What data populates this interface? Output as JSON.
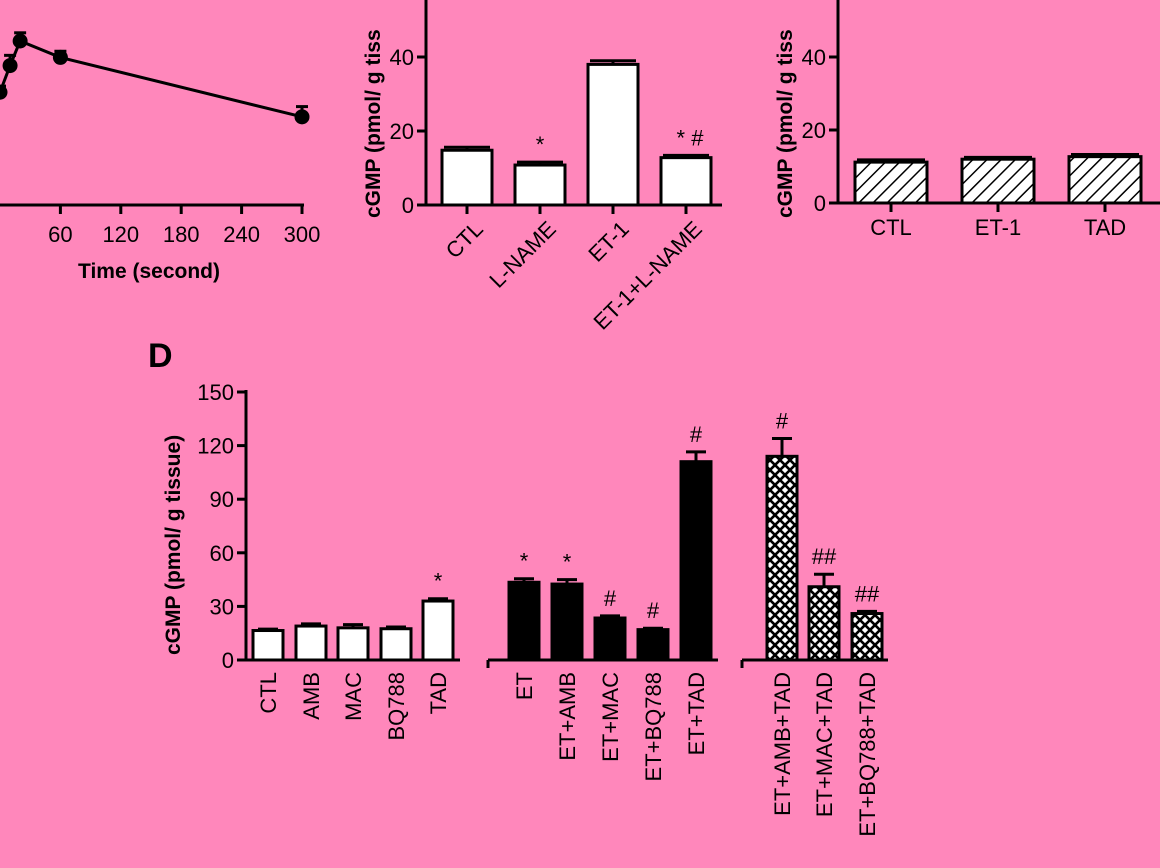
{
  "chart_data": [
    {
      "id": "A",
      "type": "line",
      "title": "",
      "xlabel": "Time (second)",
      "ylabel": "",
      "x_ticks": [
        "60",
        "120",
        "180",
        "240",
        "300"
      ],
      "xlim": [
        0,
        300
      ],
      "series": [
        {
          "x": [
            0,
            10,
            20,
            60,
            300
          ],
          "y": [
            0.55,
            0.68,
            0.8,
            0.72,
            0.43
          ],
          "err": [
            0.03,
            0.05,
            0.04,
            0.03,
            0.05
          ]
        }
      ],
      "note": "y-axis cropped; y values are relative estimates only"
    },
    {
      "id": "B",
      "type": "bar",
      "title": "",
      "ylabel": "cGMP (pmol/ g tiss",
      "y_ticks": [
        "0",
        "20",
        "40"
      ],
      "ylim": [
        0,
        60
      ],
      "categories": [
        "CTL",
        "L-NAME",
        "ET-1",
        "ET-1+L-NAME"
      ],
      "values": [
        14.8,
        10.8,
        38,
        12.8
      ],
      "errors": [
        0.8,
        0.8,
        1.0,
        0.6
      ],
      "annotations": [
        "",
        "*",
        "",
        "*#"
      ]
    },
    {
      "id": "C",
      "type": "bar",
      "title": "",
      "ylabel": "cGMP (pmol/ g tiss",
      "y_ticks": [
        "0",
        "20",
        "40"
      ],
      "ylim": [
        0,
        60
      ],
      "categories": [
        "CTL",
        "ET-1",
        "TAD"
      ],
      "values": [
        11.2,
        12,
        12.7
      ],
      "errors": [
        0.6,
        0.5,
        0.6
      ],
      "fill": "hatched"
    },
    {
      "id": "D",
      "panel_label": "D",
      "type": "bar",
      "title": "",
      "ylabel": "cGMP (pmol/ g tissue)",
      "y_ticks": [
        "0",
        "30",
        "60",
        "90",
        "120",
        "150"
      ],
      "ylim": [
        0,
        150
      ],
      "categories": [
        "CTL",
        "AMB",
        "MAC",
        "BQ788",
        "TAD",
        "ET",
        "ET+AMB",
        "ET+MAC",
        "ET+BQ788",
        "ET+TAD",
        "ET+AMB+TAD",
        "ET+MAC+TAD",
        "ET+BQ788+TAD"
      ],
      "values": [
        16.5,
        19,
        18,
        17.5,
        33,
        43.5,
        42.5,
        23.5,
        17,
        111,
        114,
        41,
        26
      ],
      "errors": [
        0.8,
        1.2,
        1.8,
        1.0,
        1.3,
        2.0,
        2.5,
        1.2,
        0.8,
        5.5,
        10,
        7,
        1.2
      ],
      "groups": [
        "open",
        "open",
        "open",
        "open",
        "open",
        "solid",
        "solid",
        "solid",
        "solid",
        "solid",
        "crosshatch",
        "crosshatch",
        "crosshatch"
      ],
      "annotations": [
        "",
        "",
        "",
        "",
        "*",
        "*",
        "*",
        "#",
        "#",
        "#",
        "#",
        "##",
        "##"
      ]
    }
  ],
  "colors": {
    "background": "#ff87bb",
    "ink": "#000000",
    "open_fill": "#ffffff"
  }
}
